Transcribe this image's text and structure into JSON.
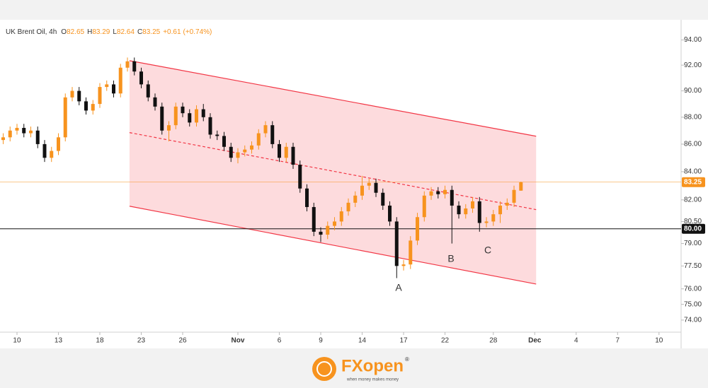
{
  "chart_data": {
    "type": "candlestick",
    "header": {
      "symbol": "UK Brent Oil, 4h",
      "open_label": "O",
      "open": 82.65,
      "high_label": "H",
      "high": 83.29,
      "low_label": "L",
      "low": 82.64,
      "close_label": "C",
      "close": 83.25,
      "change": "+0.61",
      "change_pct": "(+0.74%)"
    },
    "log_scale": true,
    "grid": false,
    "up_color": "#f7931e",
    "down_color": "#111111",
    "xlim": [
      -1.23,
      48.1
    ],
    "ylim": [
      73.24,
      95.23
    ],
    "xticks": [
      {
        "value": 0,
        "label": "10"
      },
      {
        "value": 3,
        "label": "13"
      },
      {
        "value": 6,
        "label": "18"
      },
      {
        "value": 9,
        "label": "23"
      },
      {
        "value": 12,
        "label": "26"
      },
      {
        "value": 16,
        "label": "Nov"
      },
      {
        "value": 19,
        "label": "6"
      },
      {
        "value": 22,
        "label": "9"
      },
      {
        "value": 25,
        "label": "14"
      },
      {
        "value": 28,
        "label": "17"
      },
      {
        "value": 31,
        "label": "22"
      },
      {
        "value": 34.5,
        "label": "28"
      },
      {
        "value": 37.5,
        "label": "Dec"
      },
      {
        "value": 40.5,
        "label": "4"
      },
      {
        "value": 43.5,
        "label": "7"
      },
      {
        "value": 46.5,
        "label": "10"
      }
    ],
    "yticks": [
      {
        "value": 74,
        "label": "74.00"
      },
      {
        "value": 75,
        "label": "75.00"
      },
      {
        "value": 76,
        "label": "76.00"
      },
      {
        "value": 77.5,
        "label": "77.50"
      },
      {
        "value": 79,
        "label": "79.00"
      },
      {
        "value": 80.5,
        "label": "80.50"
      },
      {
        "value": 82,
        "label": "82.00"
      },
      {
        "value": 84,
        "label": "84.00"
      },
      {
        "value": 86,
        "label": "86.00"
      },
      {
        "value": 88,
        "label": "88.00"
      },
      {
        "value": 90,
        "label": "90.00"
      },
      {
        "value": 92,
        "label": "92.00"
      },
      {
        "value": 94,
        "label": "94.00"
      }
    ],
    "candles": [
      [
        -1,
        86.3,
        86.8,
        86.0,
        86.5
      ],
      [
        -0.5,
        86.5,
        87.3,
        86.2,
        87.0
      ],
      [
        0,
        87.0,
        87.5,
        86.7,
        87.2
      ],
      [
        0.5,
        87.2,
        87.5,
        86.5,
        86.8
      ],
      [
        1,
        86.8,
        87.3,
        86.5,
        87.0
      ],
      [
        1.5,
        87.0,
        87.3,
        85.7,
        86.0
      ],
      [
        2,
        86.0,
        86.3,
        84.7,
        85.0
      ],
      [
        2.5,
        85.0,
        85.8,
        84.7,
        85.5
      ],
      [
        3,
        85.5,
        86.8,
        85.2,
        86.5
      ],
      [
        3.5,
        86.5,
        89.8,
        86.2,
        89.5
      ],
      [
        4,
        89.5,
        90.3,
        89.2,
        90.0
      ],
      [
        4.5,
        90.0,
        90.3,
        88.9,
        89.2
      ],
      [
        5,
        89.2,
        89.5,
        88.2,
        88.5
      ],
      [
        5.5,
        88.5,
        89.3,
        88.2,
        89.0
      ],
      [
        6,
        89.0,
        90.6,
        88.7,
        90.3
      ],
      [
        6.5,
        90.3,
        90.8,
        90.0,
        90.5
      ],
      [
        7,
        90.5,
        90.8,
        89.5,
        89.8
      ],
      [
        7.5,
        89.8,
        92.1,
        89.5,
        91.8
      ],
      [
        8,
        91.8,
        92.6,
        91.5,
        92.3
      ],
      [
        8.5,
        92.3,
        92.6,
        91.2,
        91.5
      ],
      [
        9,
        91.5,
        91.8,
        90.2,
        90.5
      ],
      [
        9.5,
        90.5,
        90.8,
        89.2,
        89.5
      ],
      [
        10,
        89.5,
        89.8,
        88.5,
        88.8
      ],
      [
        10.5,
        88.8,
        89.1,
        86.7,
        87.0
      ],
      [
        11,
        87.0,
        87.7,
        86.2,
        87.4
      ],
      [
        11.5,
        87.4,
        89.1,
        87.1,
        88.8
      ],
      [
        12,
        88.8,
        89.1,
        88.0,
        88.3
      ],
      [
        12.5,
        88.3,
        88.6,
        87.3,
        87.6
      ],
      [
        13,
        87.6,
        88.9,
        87.3,
        88.6
      ],
      [
        13.5,
        88.6,
        89.0,
        87.7,
        88.0
      ],
      [
        14,
        88.0,
        88.3,
        86.4,
        86.7
      ],
      [
        14.5,
        86.7,
        87.0,
        86.3,
        86.6
      ],
      [
        15,
        86.6,
        86.9,
        85.5,
        85.8
      ],
      [
        15.5,
        85.8,
        86.1,
        84.7,
        85.0
      ],
      [
        16,
        85.0,
        85.7,
        84.6,
        85.4
      ],
      [
        16.5,
        85.4,
        85.9,
        85.1,
        85.6
      ],
      [
        17,
        85.6,
        86.2,
        85.3,
        85.9
      ],
      [
        17.5,
        85.9,
        87.1,
        85.6,
        86.8
      ],
      [
        18,
        86.8,
        87.7,
        86.5,
        87.4
      ],
      [
        18.5,
        87.4,
        87.7,
        85.7,
        86.0
      ],
      [
        19,
        86.0,
        86.3,
        84.7,
        85.0
      ],
      [
        19.5,
        85.0,
        86.1,
        84.7,
        85.8
      ],
      [
        20,
        85.8,
        86.1,
        84.2,
        84.5
      ],
      [
        20.5,
        84.5,
        84.8,
        82.5,
        82.8
      ],
      [
        21,
        82.8,
        83.1,
        81.2,
        81.5
      ],
      [
        21.5,
        81.5,
        81.8,
        79.5,
        79.8
      ],
      [
        22,
        79.8,
        80.1,
        79.1,
        79.6
      ],
      [
        22.5,
        79.6,
        80.5,
        79.3,
        80.2
      ],
      [
        23,
        80.2,
        80.8,
        79.9,
        80.5
      ],
      [
        23.5,
        80.5,
        81.5,
        80.2,
        81.2
      ],
      [
        24,
        81.2,
        82.1,
        80.9,
        81.8
      ],
      [
        24.5,
        81.8,
        82.6,
        81.5,
        82.3
      ],
      [
        25,
        82.3,
        83.7,
        82.0,
        83.0
      ],
      [
        25.5,
        83.0,
        83.5,
        82.7,
        83.2
      ],
      [
        26,
        83.2,
        83.5,
        82.2,
        82.5
      ],
      [
        26.5,
        82.5,
        82.8,
        81.3,
        81.6
      ],
      [
        27,
        81.6,
        81.9,
        80.2,
        80.5
      ],
      [
        27.5,
        80.5,
        80.8,
        76.7,
        77.5
      ],
      [
        28,
        77.5,
        77.9,
        77.2,
        77.6
      ],
      [
        28.5,
        77.6,
        79.5,
        77.3,
        79.2
      ],
      [
        29,
        79.2,
        81.1,
        78.9,
        80.8
      ],
      [
        29.5,
        80.8,
        82.6,
        80.5,
        82.3
      ],
      [
        30,
        82.3,
        82.9,
        82.0,
        82.6
      ],
      [
        30.5,
        82.6,
        82.9,
        82.1,
        82.4
      ],
      [
        31,
        82.4,
        83.0,
        82.1,
        82.7
      ],
      [
        31.5,
        82.7,
        83.0,
        79.0,
        81.6
      ],
      [
        32,
        81.6,
        81.9,
        80.7,
        81.0
      ],
      [
        32.5,
        81.0,
        81.7,
        80.7,
        81.4
      ],
      [
        33,
        81.4,
        82.2,
        81.1,
        81.9
      ],
      [
        33.5,
        81.9,
        82.2,
        79.8,
        80.4
      ],
      [
        34,
        80.4,
        80.8,
        80.1,
        80.5
      ],
      [
        34.5,
        80.5,
        81.3,
        80.2,
        81.0
      ],
      [
        35,
        81.0,
        81.9,
        80.4,
        81.6
      ],
      [
        35.5,
        81.6,
        82.1,
        81.3,
        81.8
      ],
      [
        36,
        81.8,
        83.0,
        81.5,
        82.7
      ],
      [
        36.5,
        82.65,
        83.29,
        82.64,
        83.25
      ]
    ],
    "channel": {
      "color": "#f23645",
      "upper": [
        [
          8.15,
          92.35
        ],
        [
          37.6,
          86.58
        ]
      ],
      "middle": [
        [
          8.15,
          86.85
        ],
        [
          37.6,
          81.32
        ]
      ],
      "lower": [
        [
          8.15,
          81.56
        ],
        [
          37.6,
          76.31
        ]
      ]
    },
    "price_lines": [
      {
        "value": 80,
        "label": "80.00",
        "color": "#111111"
      },
      {
        "value": 83.25,
        "label": "83.25",
        "color": "#f7931e"
      }
    ],
    "annotations": [
      "A",
      "B",
      "C"
    ],
    "logo": {
      "text": "FXopen",
      "mark": "®",
      "tagline": "when money makes money"
    }
  }
}
